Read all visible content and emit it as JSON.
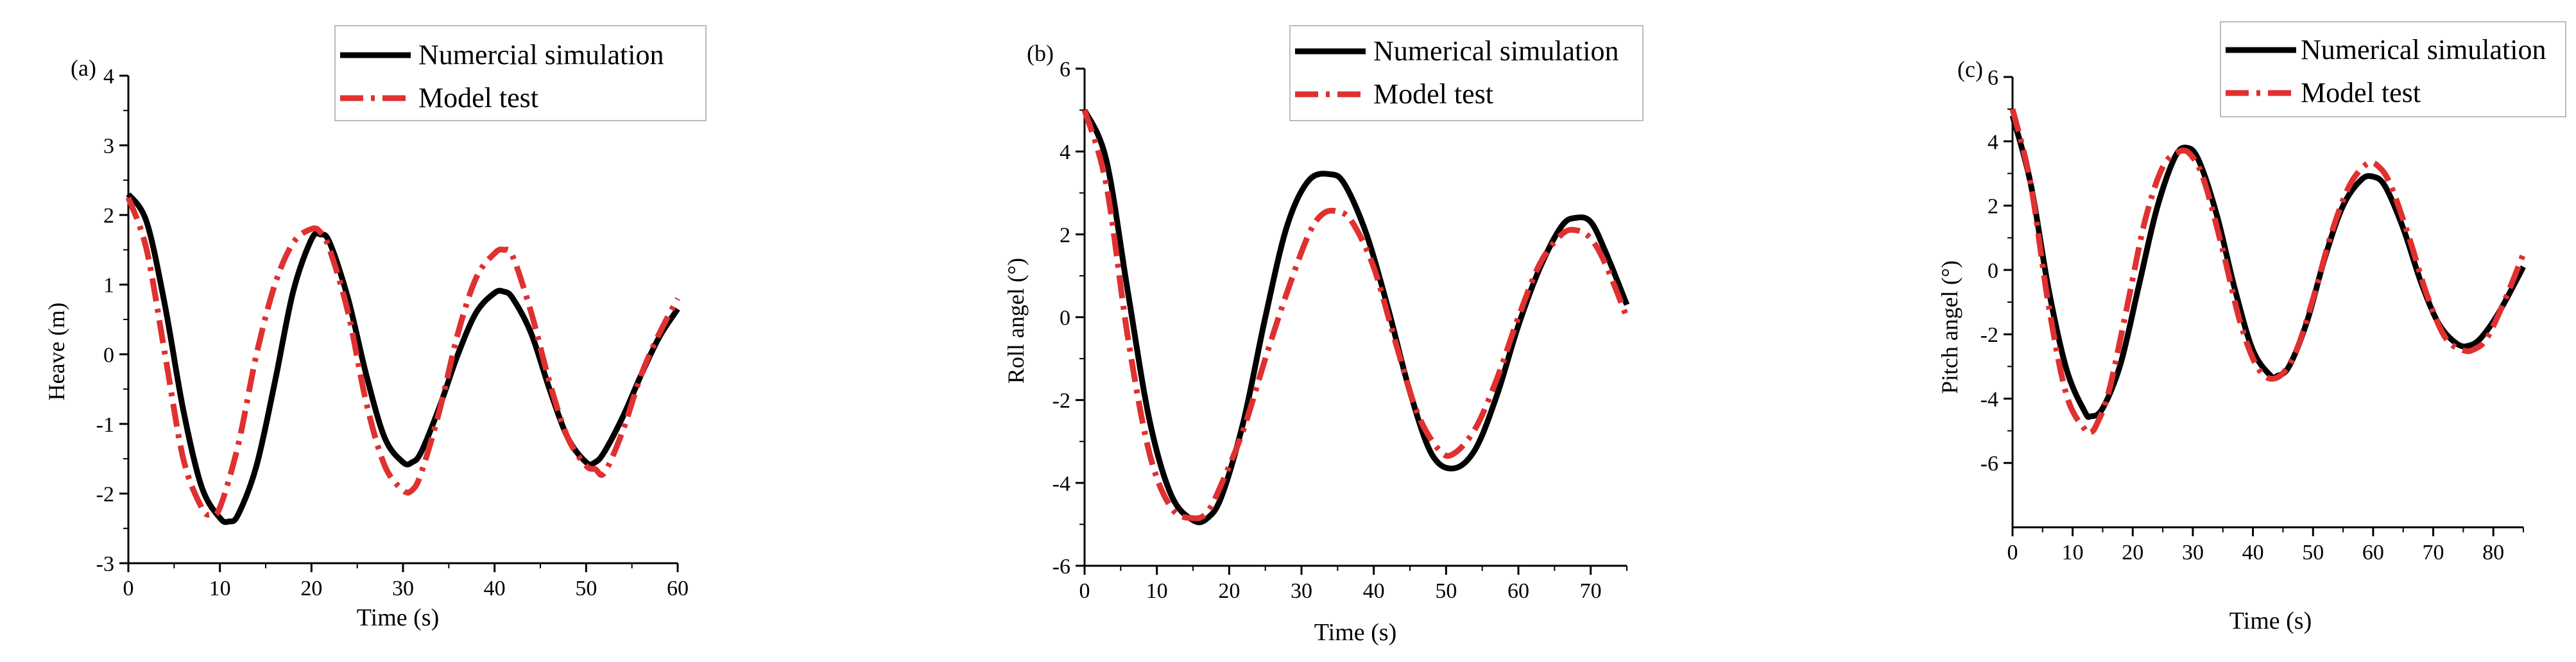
{
  "chart_data": [
    {
      "type": "line",
      "panel_label": "(a)",
      "xlabel": "Time (s)",
      "ylabel": "Heave (m)",
      "xlim": [
        0,
        60
      ],
      "ylim": [
        -3,
        4
      ],
      "xticks": [
        0,
        10,
        20,
        30,
        40,
        50,
        60
      ],
      "yticks": [
        -3,
        -2,
        -1,
        0,
        1,
        2,
        3,
        4
      ],
      "legend_position": "top-right",
      "series": [
        {
          "name": "Numercial simulation",
          "style": "solid",
          "color": "#000000",
          "x": [
            0,
            2,
            4,
            6,
            8,
            10,
            11,
            12,
            14,
            16,
            18,
            20,
            21,
            22,
            24,
            26,
            28,
            30,
            31,
            32,
            34,
            36,
            38,
            40,
            41,
            42,
            44,
            46,
            48,
            50,
            51,
            52,
            54,
            56,
            58,
            60
          ],
          "y": [
            2.3,
            1.9,
            0.7,
            -0.8,
            -1.9,
            -2.35,
            -2.4,
            -2.3,
            -1.6,
            -0.4,
            0.9,
            1.65,
            1.72,
            1.6,
            0.8,
            -0.3,
            -1.2,
            -1.55,
            -1.55,
            -1.4,
            -0.75,
            0.0,
            0.6,
            0.88,
            0.9,
            0.8,
            0.3,
            -0.5,
            -1.2,
            -1.55,
            -1.55,
            -1.4,
            -0.9,
            -0.3,
            0.25,
            0.65
          ]
        },
        {
          "name": "Model test",
          "style": "dashdot",
          "color": "#e03030",
          "x": [
            0,
            2,
            4,
            6,
            8,
            9,
            10,
            12,
            14,
            16,
            18,
            20,
            21,
            22,
            24,
            26,
            28,
            30,
            31,
            32,
            34,
            36,
            38,
            40,
            41,
            42,
            44,
            46,
            48,
            50,
            51,
            52,
            54,
            56,
            58,
            60
          ],
          "y": [
            2.25,
            1.5,
            0.0,
            -1.5,
            -2.2,
            -2.3,
            -2.2,
            -1.3,
            0.0,
            1.0,
            1.6,
            1.8,
            1.75,
            1.5,
            0.6,
            -0.7,
            -1.6,
            -1.95,
            -1.95,
            -1.7,
            -0.8,
            0.3,
            1.1,
            1.45,
            1.5,
            1.4,
            0.6,
            -0.4,
            -1.2,
            -1.6,
            -1.65,
            -1.7,
            -1.1,
            -0.3,
            0.3,
            0.8
          ]
        }
      ]
    },
    {
      "type": "line",
      "panel_label": "(b)",
      "xlabel": "Time (s)",
      "ylabel": "Roll angel (°)",
      "xlim": [
        0,
        75
      ],
      "ylim": [
        -6,
        6
      ],
      "xticks": [
        0,
        10,
        20,
        30,
        40,
        50,
        60,
        70
      ],
      "yticks": [
        -6,
        -4,
        -2,
        0,
        2,
        4,
        6
      ],
      "legend_position": "top-right",
      "series": [
        {
          "name": "Numerical simulation",
          "style": "solid",
          "color": "#000000",
          "x": [
            0,
            3,
            6,
            9,
            12,
            15,
            17,
            19,
            22,
            25,
            28,
            31,
            34,
            36,
            39,
            42,
            45,
            48,
            51,
            54,
            57,
            60,
            63,
            66,
            68,
            70,
            72,
            75
          ],
          "y": [
            5.0,
            3.8,
            0.6,
            -2.5,
            -4.3,
            -4.9,
            -4.85,
            -4.3,
            -2.5,
            0.0,
            2.2,
            3.3,
            3.45,
            3.2,
            2.0,
            0.2,
            -1.8,
            -3.3,
            -3.65,
            -3.2,
            -1.9,
            -0.2,
            1.2,
            2.2,
            2.4,
            2.3,
            1.6,
            0.3
          ]
        },
        {
          "name": "Model test",
          "style": "dashdot",
          "color": "#e03030",
          "x": [
            0,
            3,
            6,
            9,
            12,
            15,
            17,
            19,
            22,
            25,
            28,
            31,
            33,
            35,
            37,
            40,
            43,
            46,
            49,
            51,
            54,
            57,
            60,
            63,
            66,
            68,
            70,
            72,
            75
          ],
          "y": [
            5.0,
            3.2,
            -0.5,
            -3.3,
            -4.6,
            -4.85,
            -4.7,
            -4.0,
            -2.7,
            -1.0,
            0.6,
            2.0,
            2.5,
            2.55,
            2.3,
            1.2,
            -0.6,
            -2.3,
            -3.2,
            -3.3,
            -2.7,
            -1.5,
            0.0,
            1.3,
            2.0,
            2.1,
            1.9,
            1.3,
            0.0
          ]
        }
      ]
    },
    {
      "type": "line",
      "panel_label": "(c)",
      "xlabel": "Time (s)",
      "ylabel": "Pitch angel (°)",
      "xlim": [
        0,
        85
      ],
      "ylim": [
        -8,
        6
      ],
      "xticks": [
        0,
        10,
        20,
        30,
        40,
        50,
        60,
        70,
        80
      ],
      "yticks": [
        -6,
        -4,
        -2,
        0,
        2,
        4,
        6
      ],
      "legend_position": "top-right",
      "series": [
        {
          "name": "Numerical simulation",
          "style": "solid",
          "color": "#000000",
          "x": [
            0,
            3,
            6,
            9,
            12,
            13,
            15,
            18,
            21,
            24,
            27,
            29,
            31,
            34,
            37,
            40,
            43,
            44,
            46,
            49,
            52,
            55,
            58,
            60,
            62,
            65,
            68,
            71,
            74,
            76,
            78,
            81,
            85
          ],
          "y": [
            4.8,
            2.7,
            -0.6,
            -3.1,
            -4.4,
            -4.55,
            -4.3,
            -2.9,
            -0.5,
            1.9,
            3.5,
            3.8,
            3.4,
            1.7,
            -0.6,
            -2.5,
            -3.3,
            -3.3,
            -3.0,
            -1.6,
            0.4,
            2.0,
            2.8,
            2.9,
            2.6,
            1.3,
            -0.4,
            -1.7,
            -2.3,
            -2.35,
            -2.1,
            -1.3,
            0.1
          ]
        },
        {
          "name": "Model test",
          "style": "dashdot",
          "color": "#e03030",
          "x": [
            0,
            3,
            6,
            9,
            12,
            13,
            14,
            16,
            19,
            22,
            25,
            28,
            30,
            32,
            35,
            38,
            41,
            44,
            47,
            50,
            53,
            56,
            59,
            61,
            63,
            66,
            69,
            72,
            75,
            77,
            79,
            82,
            85
          ],
          "y": [
            5.0,
            2.7,
            -1.1,
            -3.9,
            -4.95,
            -5.05,
            -4.8,
            -3.8,
            -1.2,
            1.5,
            3.2,
            3.7,
            3.5,
            2.7,
            0.6,
            -1.7,
            -3.1,
            -3.35,
            -2.6,
            -0.9,
            1.1,
            2.6,
            3.3,
            3.2,
            2.6,
            1.0,
            -0.8,
            -2.1,
            -2.5,
            -2.45,
            -2.1,
            -0.9,
            0.5
          ]
        }
      ]
    }
  ]
}
